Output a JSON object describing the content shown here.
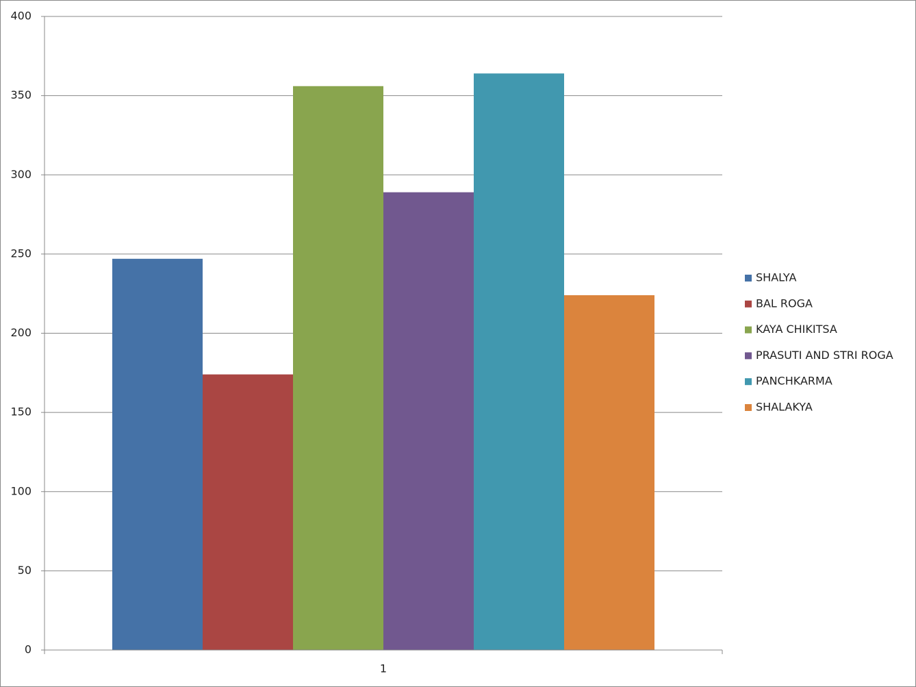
{
  "chart_data": {
    "type": "bar",
    "categories": [
      "1"
    ],
    "series": [
      {
        "name": "SHALYA",
        "color": "#4572a7",
        "values": [
          247
        ]
      },
      {
        "name": "BAL ROGA",
        "color": "#aa4643",
        "values": [
          174
        ]
      },
      {
        "name": "KAYA CHIKITSA",
        "color": "#89a54e",
        "values": [
          356
        ]
      },
      {
        "name": "PRASUTI AND STRI ROGA",
        "color": "#71588f",
        "values": [
          289
        ]
      },
      {
        "name": "PANCHKARMA",
        "color": "#4198af",
        "values": [
          364
        ]
      },
      {
        "name": "SHALAKYA",
        "color": "#db843d",
        "values": [
          224
        ]
      }
    ],
    "ylim": [
      0,
      400
    ],
    "yticks": [
      0,
      50,
      100,
      150,
      200,
      250,
      300,
      350,
      400
    ],
    "grid": true,
    "legend": "right"
  }
}
